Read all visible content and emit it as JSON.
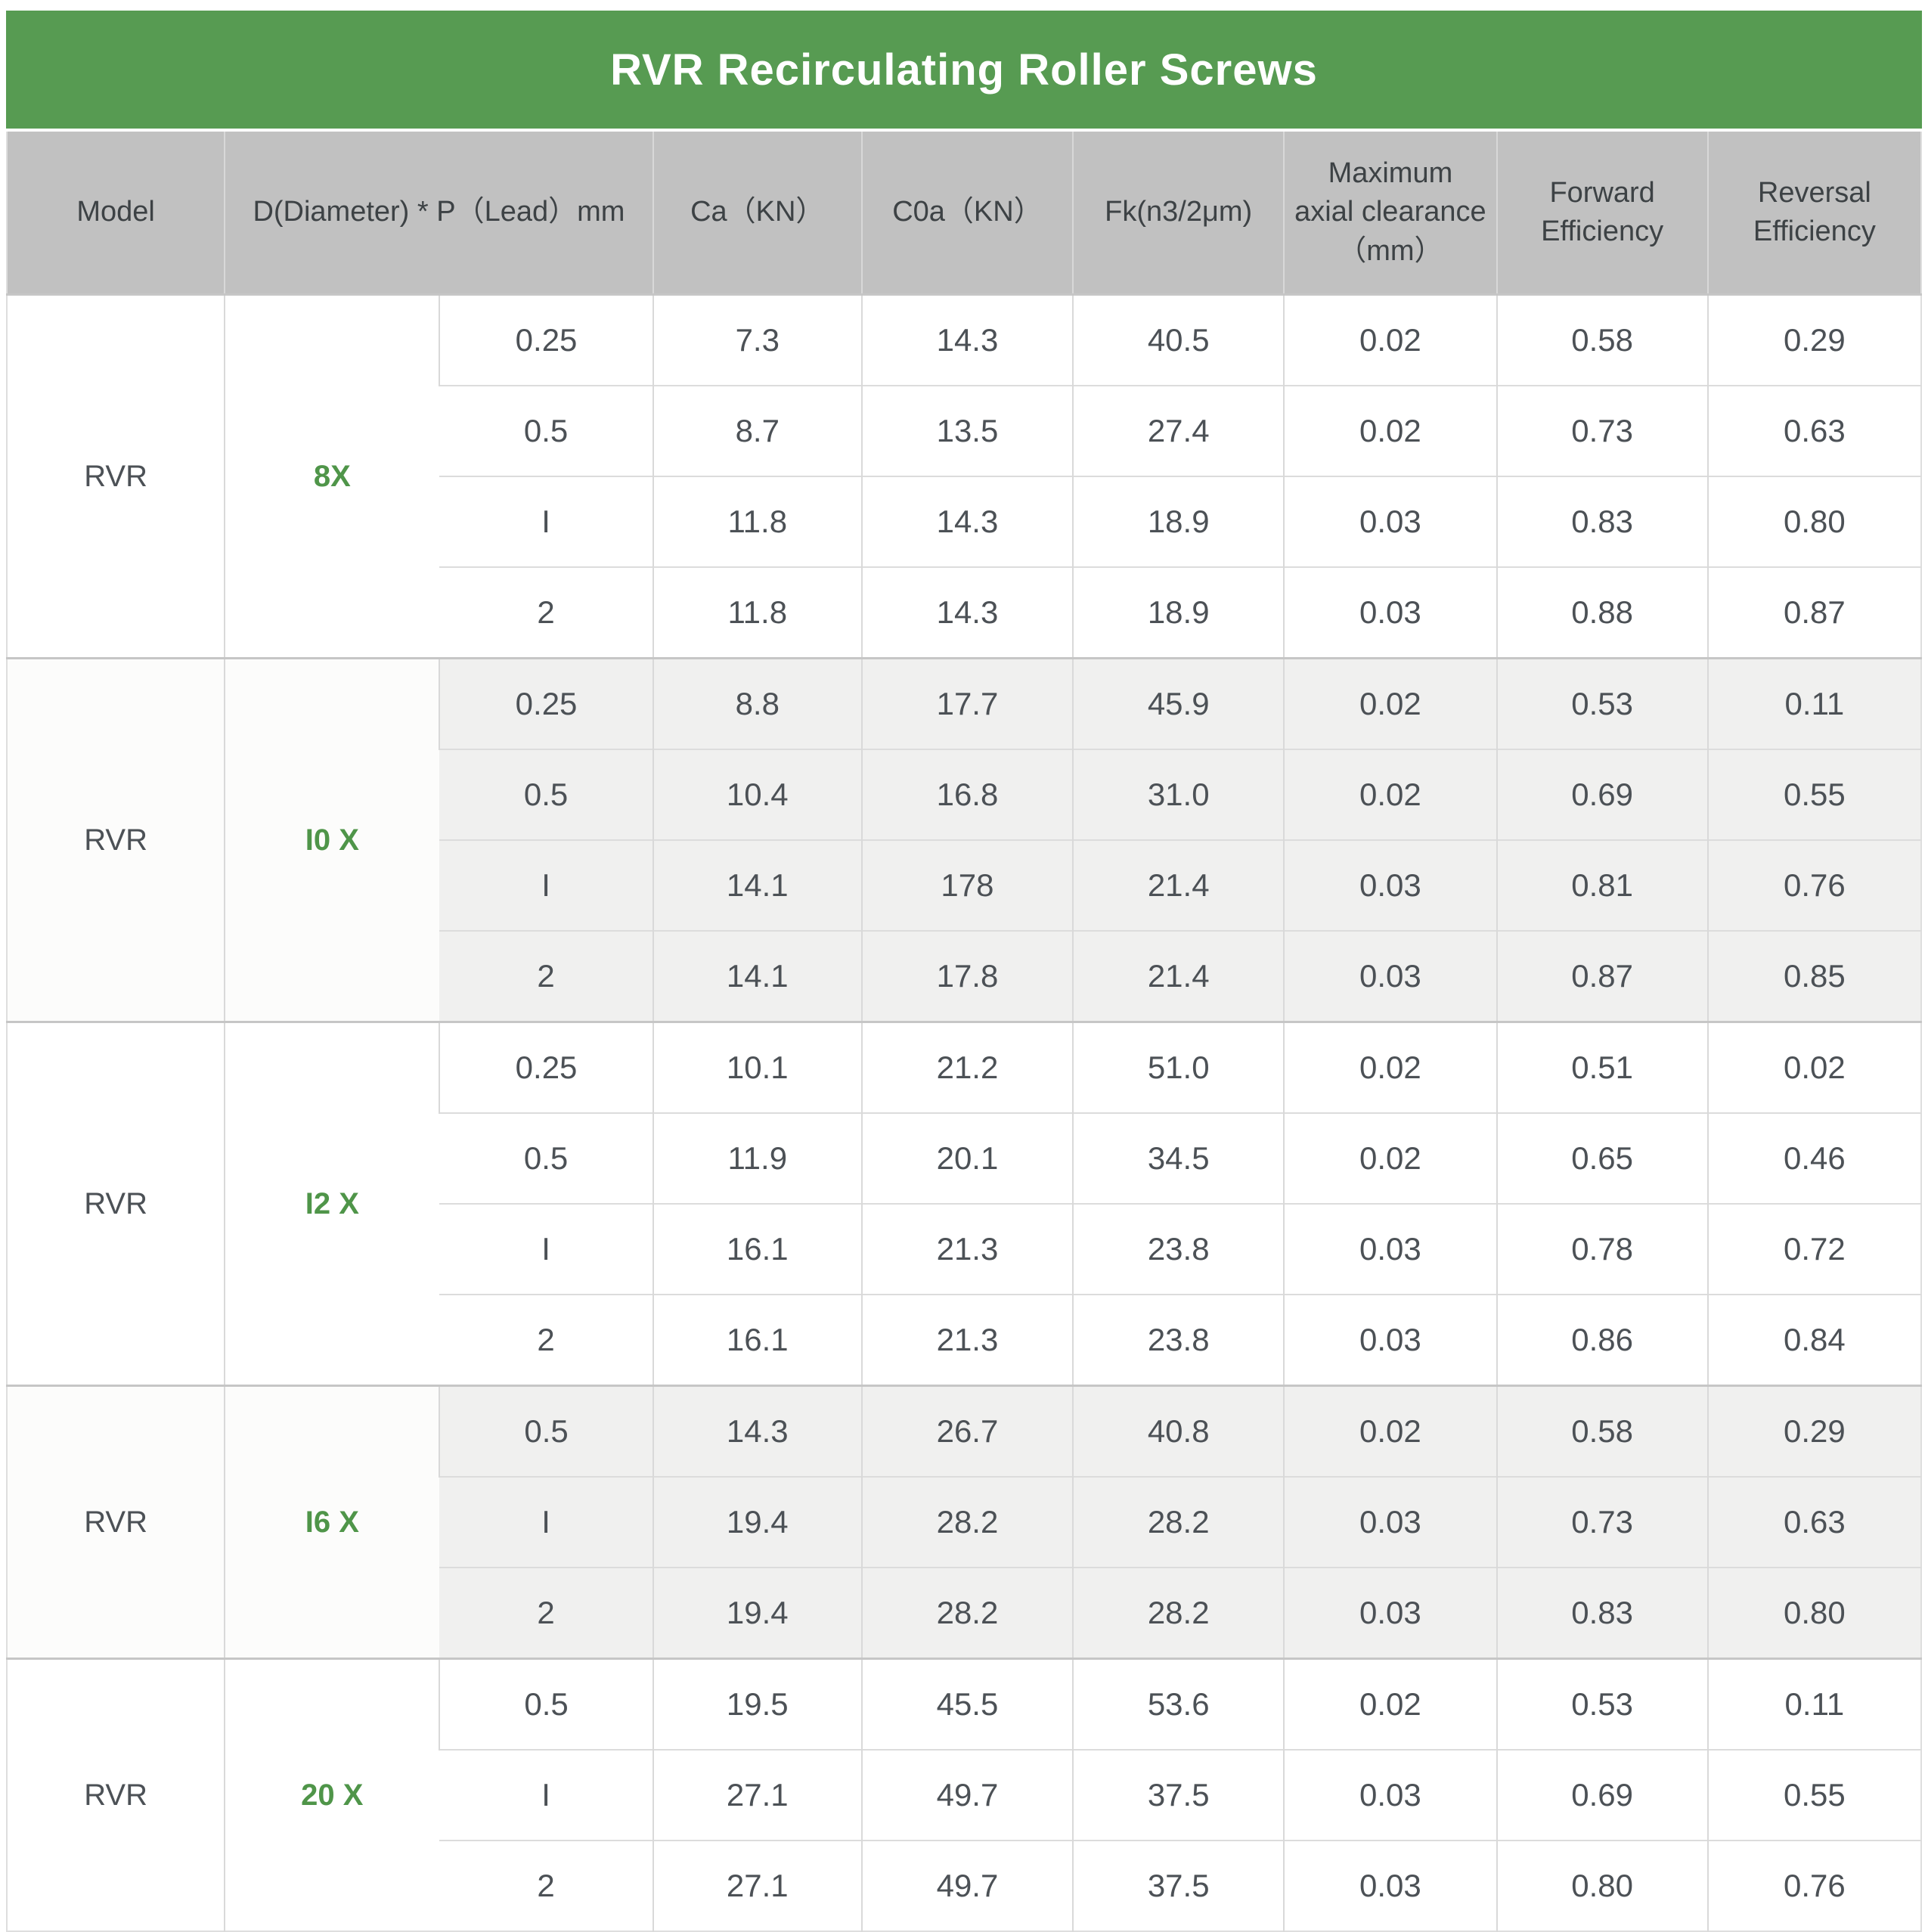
{
  "title": "RVR Recirculating Roller Screws",
  "colors": {
    "banner_green": "#579B52",
    "header_gray": "#C1C1C1",
    "accent_green": "#4F9549",
    "row_tint": "#F0F0EF"
  },
  "table": {
    "columns": [
      "Model",
      "D(Diameter) * P（Lead）mm",
      "Ca（KN）",
      "C0a（KN）",
      "Fk(n3/2μm)",
      "Maximum\naxial clearance\n（mm）",
      "Forward\nEfficiency",
      "Reversal\nEfficiency"
    ],
    "groups": [
      {
        "model": "RVR",
        "size": "8X",
        "rows": [
          [
            "0.25",
            "7.3",
            "14.3",
            "40.5",
            "0.02",
            "0.58",
            "0.29"
          ],
          [
            "0.5",
            "8.7",
            "13.5",
            "27.4",
            "0.02",
            "0.73",
            "0.63"
          ],
          [
            "I",
            "11.8",
            "14.3",
            "18.9",
            "0.03",
            "0.83",
            "0.80"
          ],
          [
            "2",
            "11.8",
            "14.3",
            "18.9",
            "0.03",
            "0.88",
            "0.87"
          ]
        ]
      },
      {
        "model": "RVR",
        "size": "I0 X",
        "rows": [
          [
            "0.25",
            "8.8",
            "17.7",
            "45.9",
            "0.02",
            "0.53",
            "0.11"
          ],
          [
            "0.5",
            "10.4",
            "16.8",
            "31.0",
            "0.02",
            "0.69",
            "0.55"
          ],
          [
            "I",
            "14.1",
            "178",
            "21.4",
            "0.03",
            "0.81",
            "0.76"
          ],
          [
            "2",
            "14.1",
            "17.8",
            "21.4",
            "0.03",
            "0.87",
            "0.85"
          ]
        ]
      },
      {
        "model": "RVR",
        "size": "I2 X",
        "rows": [
          [
            "0.25",
            "10.1",
            "21.2",
            "51.0",
            "0.02",
            "0.51",
            "0.02"
          ],
          [
            "0.5",
            "11.9",
            "20.1",
            "34.5",
            "0.02",
            "0.65",
            "0.46"
          ],
          [
            "I",
            "16.1",
            "21.3",
            "23.8",
            "0.03",
            "0.78",
            "0.72"
          ],
          [
            "2",
            "16.1",
            "21.3",
            "23.8",
            "0.03",
            "0.86",
            "0.84"
          ]
        ]
      },
      {
        "model": "RVR",
        "size": "I6 X",
        "rows": [
          [
            "0.5",
            "14.3",
            "26.7",
            "40.8",
            "0.02",
            "0.58",
            "0.29"
          ],
          [
            "I",
            "19.4",
            "28.2",
            "28.2",
            "0.03",
            "0.73",
            "0.63"
          ],
          [
            "2",
            "19.4",
            "28.2",
            "28.2",
            "0.03",
            "0.83",
            "0.80"
          ]
        ]
      },
      {
        "model": "RVR",
        "size": "20 X",
        "rows": [
          [
            "0.5",
            "19.5",
            "45.5",
            "53.6",
            "0.02",
            "0.53",
            "0.11"
          ],
          [
            "I",
            "27.1",
            "49.7",
            "37.5",
            "0.03",
            "0.69",
            "0.55"
          ],
          [
            "2",
            "27.1",
            "49.7",
            "37.5",
            "0.03",
            "0.80",
            "0.76"
          ]
        ]
      }
    ]
  }
}
